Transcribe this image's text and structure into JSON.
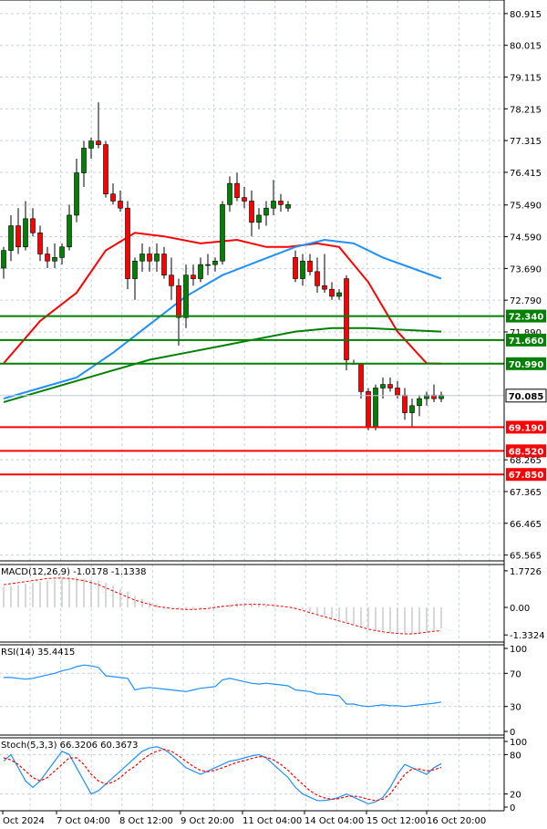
{
  "chart_data": {
    "type": "candlestick",
    "price_axis": {
      "ticks": [
        "80.915",
        "80.015",
        "79.115",
        "78.215",
        "77.315",
        "76.415",
        "75.490",
        "74.590",
        "73.690",
        "72.790",
        "71.890",
        "68.265",
        "67.365",
        "66.465",
        "65.565"
      ],
      "ylim": [
        65.4,
        81.3
      ]
    },
    "time_axis": {
      "labels": [
        "Oct 2024",
        "7 Oct 04:00",
        "8 Oct 12:00",
        "9 Oct 20:00",
        "11 Oct 04:00",
        "14 Oct 04:00",
        "15 Oct 12:00",
        "16 Oct 20:00"
      ]
    },
    "current_price": "70.085",
    "levels": [
      {
        "label": "72.340",
        "value": 72.34,
        "color": "#008000"
      },
      {
        "label": "71.660",
        "value": 71.66,
        "color": "#008000"
      },
      {
        "label": "70.990",
        "value": 70.99,
        "color": "#008000"
      },
      {
        "label": "69.190",
        "value": 69.19,
        "color": "#ff0000"
      },
      {
        "label": "68.520",
        "value": 68.52,
        "color": "#ff0000"
      },
      {
        "label": "67.850",
        "value": 67.85,
        "color": "#ff0000"
      }
    ],
    "candles": [
      [
        73.7,
        74.3,
        73.4,
        74.2
      ],
      [
        74.2,
        75.2,
        73.9,
        74.9
      ],
      [
        74.9,
        75.4,
        74.1,
        74.3
      ],
      [
        74.3,
        75.6,
        74.2,
        75.1
      ],
      [
        75.1,
        75.4,
        74.6,
        74.7
      ],
      [
        74.7,
        74.9,
        73.9,
        74.1
      ],
      [
        74.1,
        74.3,
        73.7,
        73.9
      ],
      [
        73.9,
        74.4,
        73.7,
        74.0
      ],
      [
        74.0,
        74.4,
        73.8,
        74.3
      ],
      [
        74.3,
        75.5,
        74.2,
        75.2
      ],
      [
        75.2,
        76.8,
        75.0,
        76.4
      ],
      [
        76.4,
        77.3,
        76.0,
        77.1
      ],
      [
        77.1,
        77.4,
        76.8,
        77.3
      ],
      [
        77.3,
        78.4,
        77.1,
        77.2
      ],
      [
        77.2,
        77.3,
        75.7,
        75.8
      ],
      [
        75.8,
        76.1,
        75.5,
        75.6
      ],
      [
        75.6,
        75.9,
        75.3,
        75.4
      ],
      [
        75.4,
        75.6,
        73.1,
        73.4
      ],
      [
        73.4,
        74.0,
        72.8,
        73.9
      ],
      [
        73.9,
        74.4,
        73.6,
        74.1
      ],
      [
        74.1,
        74.3,
        73.6,
        73.9
      ],
      [
        73.9,
        74.4,
        73.6,
        74.1
      ],
      [
        74.1,
        74.3,
        73.4,
        73.5
      ],
      [
        73.5,
        74.0,
        72.8,
        73.2
      ],
      [
        73.2,
        73.4,
        71.5,
        72.3
      ],
      [
        72.3,
        73.8,
        72.0,
        73.5
      ],
      [
        73.5,
        73.8,
        73.2,
        73.4
      ],
      [
        73.4,
        74.0,
        73.3,
        73.8
      ],
      [
        73.8,
        74.1,
        73.5,
        73.8
      ],
      [
        73.8,
        74.0,
        73.6,
        73.9
      ],
      [
        73.9,
        75.6,
        73.8,
        75.5
      ],
      [
        75.5,
        76.3,
        75.3,
        76.1
      ],
      [
        76.1,
        76.4,
        75.6,
        75.7
      ],
      [
        75.7,
        76.0,
        75.4,
        75.6
      ],
      [
        75.6,
        75.9,
        74.6,
        75.0
      ],
      [
        75.0,
        75.4,
        74.8,
        75.2
      ],
      [
        75.2,
        75.6,
        74.9,
        75.4
      ],
      [
        75.4,
        76.2,
        75.2,
        75.6
      ],
      [
        75.6,
        75.8,
        75.3,
        75.5
      ],
      [
        75.4,
        75.6,
        75.3,
        75.5
      ],
      [
        74.0,
        74.2,
        73.3,
        73.4
      ],
      [
        73.4,
        74.1,
        73.2,
        73.9
      ],
      [
        73.9,
        74.1,
        73.5,
        73.6
      ],
      [
        73.6,
        74.0,
        73.0,
        73.2
      ],
      [
        73.2,
        74.1,
        73.0,
        73.1
      ],
      [
        73.1,
        73.3,
        72.8,
        72.9
      ],
      [
        72.9,
        73.1,
        72.8,
        73.0
      ],
      [
        73.4,
        73.5,
        70.8,
        71.1
      ],
      [
        71.0,
        71.1,
        71.0,
        71.0
      ],
      [
        71.0,
        71.0,
        70.0,
        70.2
      ],
      [
        70.2,
        70.3,
        69.1,
        69.2
      ],
      [
        69.2,
        70.4,
        69.1,
        70.3
      ],
      [
        70.3,
        70.6,
        70.0,
        70.4
      ],
      [
        70.4,
        70.6,
        70.2,
        70.3
      ],
      [
        70.3,
        70.5,
        70.0,
        70.1
      ],
      [
        70.1,
        70.3,
        69.4,
        69.6
      ],
      [
        69.6,
        70.0,
        69.2,
        69.8
      ],
      [
        69.8,
        70.1,
        69.5,
        70.0
      ],
      [
        70.0,
        70.2,
        69.8,
        70.1
      ],
      [
        70.1,
        70.4,
        69.9,
        70.0
      ],
      [
        70.0,
        70.2,
        69.9,
        70.1
      ]
    ],
    "moving_averages": [
      {
        "color": "#ff0000",
        "points": [
          [
            0,
            71.0
          ],
          [
            5,
            72.2
          ],
          [
            10,
            73.0
          ],
          [
            14,
            74.2
          ],
          [
            18,
            74.7
          ],
          [
            22,
            74.6
          ],
          [
            27,
            74.4
          ],
          [
            32,
            74.5
          ],
          [
            36,
            74.3
          ],
          [
            39,
            74.3
          ],
          [
            43,
            74.4
          ],
          [
            46,
            74.3
          ],
          [
            50,
            73.3
          ],
          [
            54,
            71.9
          ],
          [
            58,
            71.0
          ],
          [
            60,
            70.99
          ]
        ]
      },
      {
        "color": "#1e90ff",
        "points": [
          [
            0,
            70.0
          ],
          [
            5,
            70.3
          ],
          [
            10,
            70.6
          ],
          [
            15,
            71.3
          ],
          [
            20,
            72.1
          ],
          [
            25,
            72.9
          ],
          [
            30,
            73.5
          ],
          [
            35,
            73.9
          ],
          [
            40,
            74.3
          ],
          [
            44,
            74.5
          ],
          [
            48,
            74.4
          ],
          [
            52,
            74.0
          ],
          [
            56,
            73.7
          ],
          [
            60,
            73.4
          ]
        ]
      },
      {
        "color": "#008000",
        "points": [
          [
            0,
            69.9
          ],
          [
            5,
            70.2
          ],
          [
            10,
            70.5
          ],
          [
            15,
            70.8
          ],
          [
            20,
            71.1
          ],
          [
            25,
            71.3
          ],
          [
            30,
            71.5
          ],
          [
            35,
            71.7
          ],
          [
            40,
            71.9
          ],
          [
            45,
            72.0
          ],
          [
            50,
            72.0
          ],
          [
            55,
            71.95
          ],
          [
            60,
            71.9
          ]
        ]
      }
    ],
    "indicators": [
      {
        "name": "MACD(12,26,9)",
        "values_text": "-1.0178 -1.1338",
        "ticks": [
          "1.7726",
          "0.00",
          "-1.3324"
        ],
        "ylim": [
          -1.5,
          1.9
        ],
        "histogram": [
          1.0,
          1.05,
          1.1,
          1.15,
          1.2,
          1.25,
          1.3,
          1.35,
          1.4,
          1.45,
          1.45,
          1.4,
          1.35,
          1.3,
          1.2,
          1.05,
          0.9,
          0.75,
          0.55,
          0.4,
          0.25,
          0.15,
          0.05,
          0.0,
          -0.05,
          -0.1,
          -0.1,
          -0.05,
          0.0,
          0.05,
          0.1,
          0.15,
          0.2,
          0.2,
          0.2,
          0.15,
          0.1,
          0.05,
          0.0,
          0.0,
          -0.05,
          -0.1,
          -0.2,
          -0.3,
          -0.4,
          -0.5,
          -0.6,
          -0.7,
          -0.8,
          -0.9,
          -1.0,
          -1.1,
          -1.15,
          -1.2,
          -1.25,
          -1.3,
          -1.3,
          -1.25,
          -1.2,
          -1.1,
          -1.02
        ],
        "signal": [
          1.1,
          1.15,
          1.2,
          1.25,
          1.3,
          1.35,
          1.4,
          1.42,
          1.42,
          1.4,
          1.35,
          1.3,
          1.2,
          1.1,
          0.95,
          0.8,
          0.65,
          0.5,
          0.35,
          0.25,
          0.15,
          0.05,
          0.0,
          -0.05,
          -0.08,
          -0.1,
          -0.1,
          -0.08,
          -0.05,
          0.0,
          0.05,
          0.08,
          0.12,
          0.14,
          0.15,
          0.15,
          0.13,
          0.1,
          0.06,
          0.02,
          -0.05,
          -0.15,
          -0.25,
          -0.35,
          -0.45,
          -0.55,
          -0.65,
          -0.75,
          -0.85,
          -0.95,
          -1.05,
          -1.12,
          -1.18,
          -1.22,
          -1.26,
          -1.28,
          -1.28,
          -1.25,
          -1.2,
          -1.15,
          -1.13
        ]
      },
      {
        "name": "RSI(14)",
        "values_text": "35.4415",
        "ticks": [
          "100",
          "70",
          "30",
          "0"
        ],
        "ylim": [
          0,
          100
        ],
        "series": [
          [
            65,
            65,
            64,
            63,
            64,
            66,
            68,
            70,
            73,
            75,
            78,
            80,
            79,
            77,
            67,
            66,
            65,
            64,
            50,
            52,
            53,
            52,
            51,
            50,
            49,
            48,
            50,
            52,
            53,
            54,
            62,
            64,
            62,
            60,
            58,
            57,
            58,
            57,
            56,
            55,
            50,
            49,
            48,
            45,
            45,
            44,
            43,
            33,
            33,
            31,
            30,
            31,
            32,
            31,
            31,
            30,
            31,
            32,
            33,
            34,
            35.4
          ]
        ]
      },
      {
        "name": "Stoch(5,3,3)",
        "values_text": "66.3206 60.3673",
        "ticks": [
          "100",
          "80",
          "20",
          "0"
        ],
        "ylim": [
          0,
          100
        ],
        "series": [
          [
            70,
            80,
            60,
            40,
            30,
            40,
            55,
            70,
            85,
            80,
            60,
            40,
            20,
            25,
            35,
            45,
            55,
            65,
            75,
            85,
            90,
            92,
            88,
            80,
            70,
            60,
            55,
            50,
            55,
            60,
            65,
            70,
            72,
            75,
            78,
            80,
            75,
            65,
            55,
            45,
            30,
            20,
            15,
            10,
            10,
            12,
            15,
            20,
            15,
            10,
            5,
            8,
            15,
            30,
            50,
            65,
            60,
            55,
            50,
            60,
            66.3
          ],
          [
            75,
            72,
            65,
            55,
            45,
            40,
            45,
            55,
            65,
            75,
            75,
            65,
            50,
            40,
            35,
            38,
            45,
            55,
            62,
            72,
            80,
            85,
            88,
            85,
            78,
            70,
            62,
            56,
            54,
            56,
            60,
            64,
            68,
            71,
            74,
            77,
            76,
            72,
            65,
            56,
            45,
            35,
            25,
            18,
            14,
            12,
            13,
            16,
            17,
            15,
            12,
            10,
            12,
            20,
            35,
            50,
            58,
            58,
            55,
            57,
            60.4
          ]
        ]
      }
    ]
  }
}
